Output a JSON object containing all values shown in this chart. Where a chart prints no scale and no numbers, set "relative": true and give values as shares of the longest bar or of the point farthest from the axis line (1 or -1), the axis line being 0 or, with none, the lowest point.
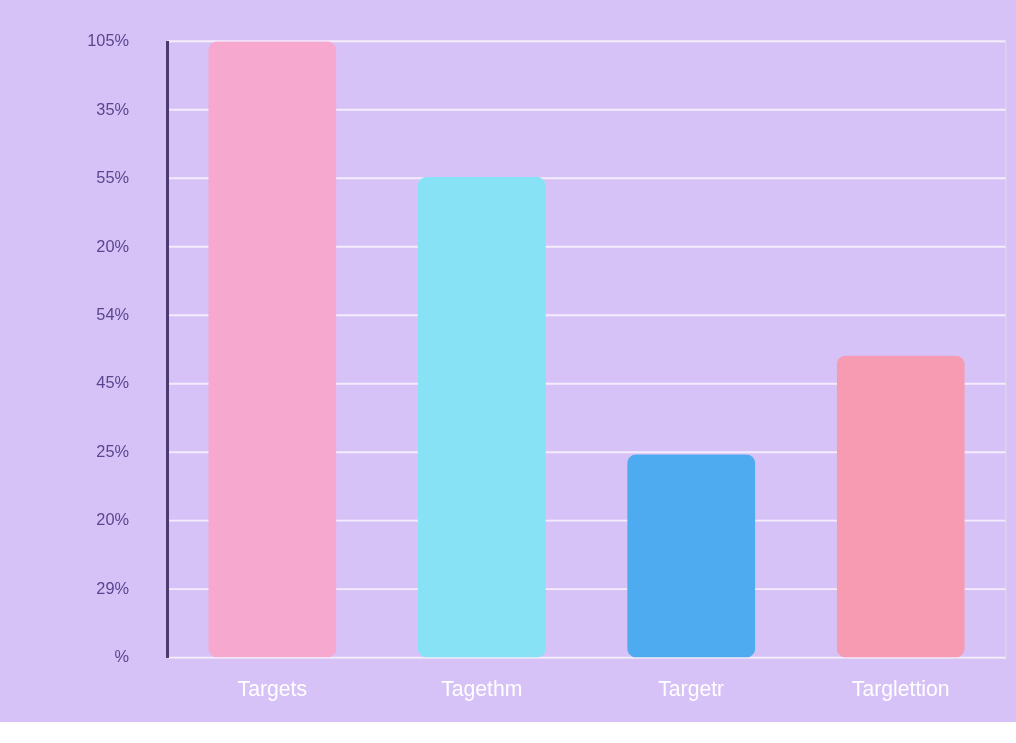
{
  "chart_data": {
    "type": "bar",
    "categories": [
      "Targets",
      "Tagethm",
      "Targetr",
      "Targlettion"
    ],
    "values": [
      1.0,
      0.78,
      0.33,
      0.49
    ],
    "colors": [
      "#f7a8cf",
      "#88e2f6",
      "#4fabf0",
      "#f79bb3"
    ],
    "relative": true,
    "annotations": [
      "105%",
      "35%",
      "55%",
      "20%",
      "54%",
      "45%",
      "25%",
      "20%",
      "29%",
      "%"
    ],
    "grid": "y"
  }
}
